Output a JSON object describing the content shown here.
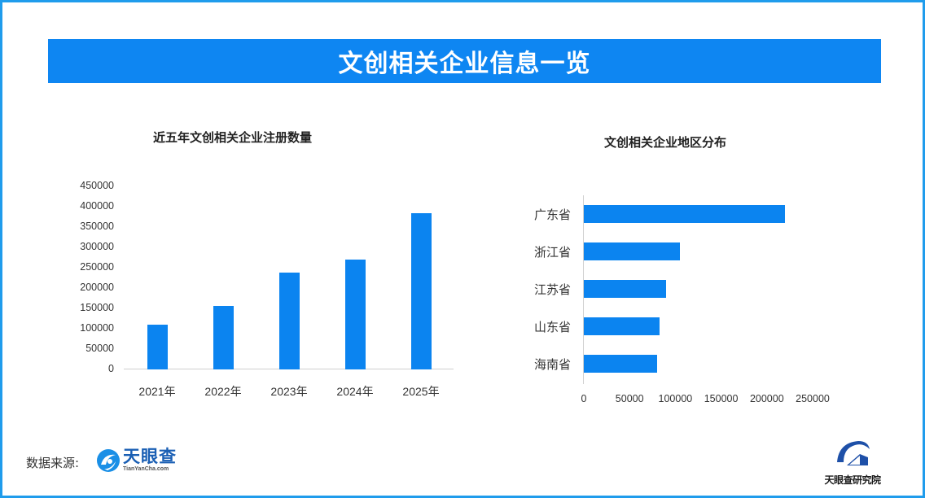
{
  "header": {
    "title": "文创相关企业信息一览"
  },
  "colors": {
    "frame_border": "#1f9cec",
    "title_bar": "#0e86f2",
    "bar": "#0b84f0",
    "axis": "#d0d0d0",
    "text": "#333333"
  },
  "chart_data": [
    {
      "type": "bar",
      "title": "近五年文创相关企业注册数量",
      "categories": [
        "2021年",
        "2022年",
        "2023年",
        "2024年",
        "2025年"
      ],
      "values": [
        110000,
        156000,
        238000,
        270000,
        384000
      ],
      "xlabel": "",
      "ylabel": "",
      "ylim": [
        0,
        450000
      ],
      "yticks": [
        "450000",
        "400000",
        "350000",
        "300000",
        "250000",
        "200000",
        "150000",
        "100000",
        "50000",
        "0"
      ],
      "grid": false,
      "legend": "none"
    },
    {
      "type": "bar",
      "orientation": "horizontal",
      "title": "文创相关企业地区分布",
      "categories": [
        "广东省",
        "浙江省",
        "江苏省",
        "山东省",
        "海南省"
      ],
      "values": [
        220000,
        105000,
        90000,
        82500,
        80000
      ],
      "xlabel": "",
      "ylabel": "",
      "xlim": [
        0,
        250000
      ],
      "xticks": [
        "0",
        "50000",
        "100000",
        "150000",
        "200000",
        "250000"
      ],
      "grid": false,
      "legend": "none"
    }
  ],
  "footer": {
    "source_label": "数据来源:",
    "source_logo_cn": "天眼查",
    "source_logo_en": "TianYanCha.com",
    "institute_name": "天眼查研究院"
  }
}
